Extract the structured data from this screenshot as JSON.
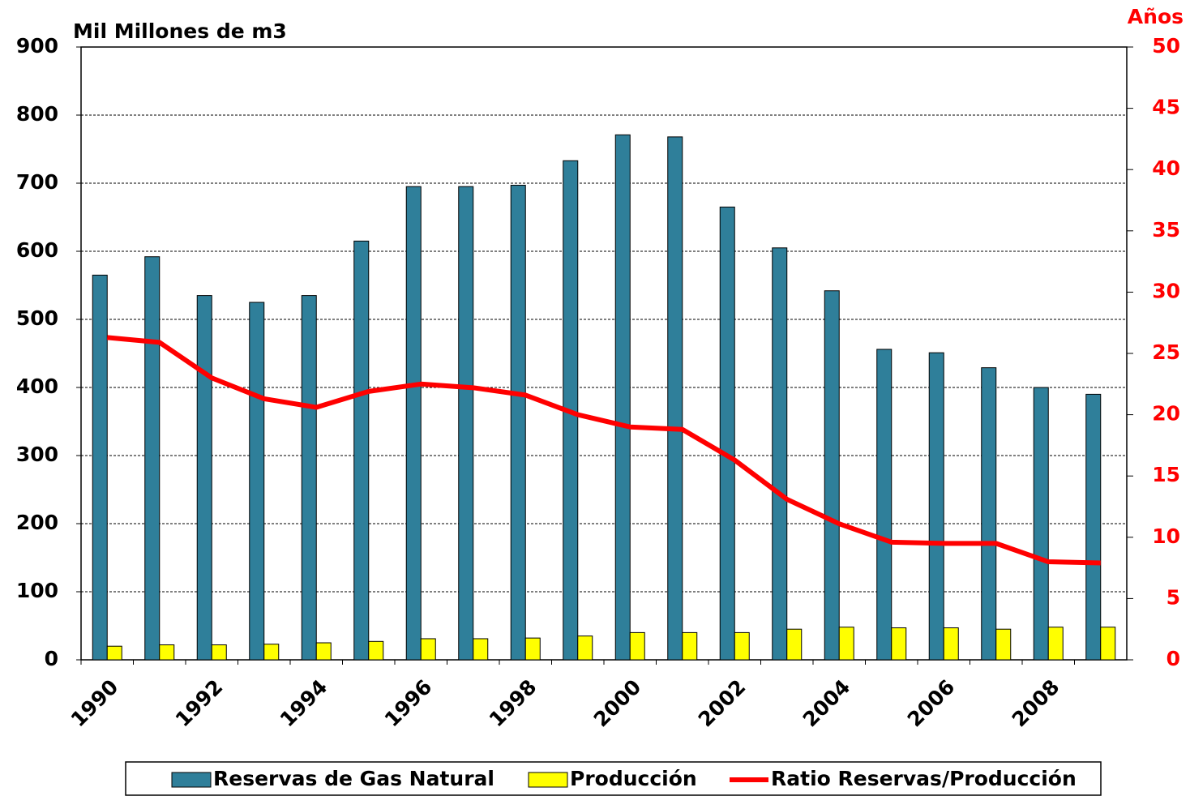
{
  "chart_data": {
    "type": "bar_line",
    "y_label": "Mil Millones de m3",
    "y2_label": "Años",
    "categories": [
      "1990",
      null,
      "1992",
      null,
      "1994",
      null,
      "1996",
      null,
      "1998",
      null,
      "2000",
      null,
      "2002",
      null,
      "2004",
      null,
      "2006",
      null,
      "2008",
      null
    ],
    "series": [
      {
        "name": "Reservas de Gas Natural",
        "type": "bar",
        "color": "#2f7f9a",
        "values": [
          565,
          592,
          535,
          525,
          535,
          615,
          695,
          695,
          697,
          733,
          771,
          768,
          665,
          605,
          542,
          456,
          451,
          429,
          400,
          390
        ]
      },
      {
        "name": "Producción",
        "type": "bar",
        "color": "#ffff00",
        "values": [
          20,
          22,
          22,
          23,
          25,
          27,
          31,
          31,
          32,
          35,
          40,
          40,
          40,
          45,
          48,
          47,
          47,
          45,
          48,
          48
        ]
      },
      {
        "name": "Ratio Reservas/Producción",
        "type": "line",
        "axis": "y2",
        "color": "#ff0000",
        "values": [
          26.3,
          25.9,
          23.0,
          21.3,
          20.6,
          21.9,
          22.5,
          22.2,
          21.6,
          20.0,
          19.0,
          18.8,
          16.3,
          13.1,
          11.1,
          9.6,
          9.5,
          9.5,
          8.0,
          7.9
        ]
      }
    ],
    "ylim": [
      0,
      900
    ],
    "yticks": [
      0,
      100,
      200,
      300,
      400,
      500,
      600,
      700,
      800,
      900
    ],
    "y2lim": [
      0,
      50
    ],
    "y2ticks": [
      0,
      5,
      10,
      15,
      20,
      25,
      30,
      35,
      40,
      45,
      50
    ],
    "grid": true,
    "legend": "bottom"
  }
}
